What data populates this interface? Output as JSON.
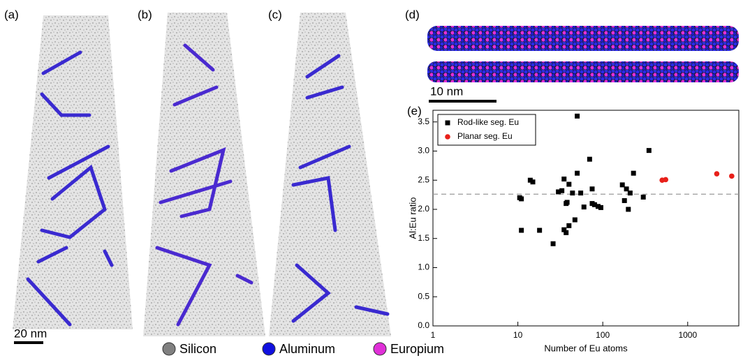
{
  "panels": {
    "labels": [
      "(a)",
      "(b)",
      "(c)",
      "(d)"
    ]
  },
  "scale_bars": {
    "a": "20 nm",
    "d": "10 nm"
  },
  "element_legend": [
    {
      "name": "Silicon",
      "color": "#808080"
    },
    {
      "name": "Aluminum",
      "color": "#1010e0"
    },
    {
      "name": "Europium",
      "color": "#e030d8"
    }
  ],
  "chart_data": {
    "type": "scatter",
    "panel_label": "(e)",
    "xlabel": "Number of Eu atoms",
    "ylabel": "Al:Eu ratio",
    "log_x": true,
    "xlim": [
      1,
      4000
    ],
    "xticks": [
      1,
      10,
      100,
      1000
    ],
    "ylim": [
      0,
      3.7
    ],
    "yticks": [
      {
        "value": 0,
        "label": "0.0"
      },
      {
        "value": 0.5,
        "label": "0.5"
      },
      {
        "value": 1,
        "label": "1.0"
      },
      {
        "value": 1.5,
        "label": "1.5"
      },
      {
        "value": 2,
        "label": "2.0"
      },
      {
        "value": 2.5,
        "label": "2.5"
      },
      {
        "value": 3,
        "label": "3.0"
      },
      {
        "value": 3.5,
        "label": "3.5"
      }
    ],
    "reference_line": 2.26,
    "legend": "upper left",
    "series": [
      {
        "name": "Rod-like seg. Eu",
        "color": "#000000",
        "marker": "square",
        "x": [
          10.5,
          11,
          11,
          14,
          15,
          18,
          26,
          30,
          33,
          35,
          35,
          37,
          37,
          38,
          40,
          40,
          44,
          47,
          50,
          50,
          55,
          60,
          70,
          75,
          75,
          80,
          88,
          95,
          170,
          180,
          190,
          200,
          210,
          230,
          300,
          350
        ],
        "values": [
          2.2,
          2.18,
          1.64,
          2.5,
          2.47,
          1.64,
          1.41,
          2.3,
          2.32,
          2.52,
          1.65,
          2.1,
          1.6,
          2.12,
          2.43,
          1.72,
          2.28,
          1.82,
          3.6,
          2.62,
          2.28,
          2.04,
          2.86,
          2.1,
          2.35,
          2.08,
          2.05,
          2.03,
          2.42,
          2.15,
          2.35,
          2.0,
          2.28,
          2.62,
          2.21,
          3.01
        ]
      },
      {
        "name": "Planar seg. Eu",
        "color": "#e8201a",
        "marker": "circle",
        "x": [
          500,
          550,
          2200,
          3300
        ],
        "values": [
          2.5,
          2.51,
          2.61,
          2.57
        ]
      }
    ]
  }
}
